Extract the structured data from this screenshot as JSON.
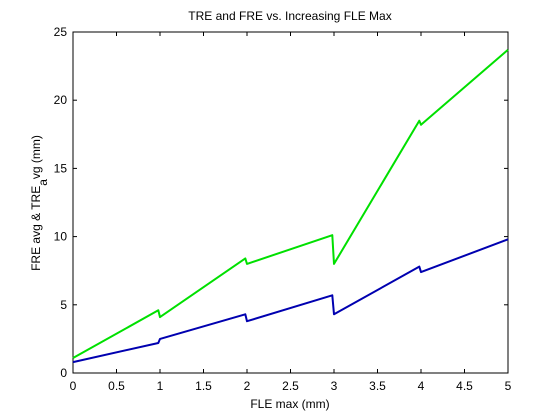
{
  "chart_data": {
    "type": "line",
    "title": "TRE and FRE vs. Increasing FLE Max",
    "xlabel": "FLE max (mm)",
    "ylabel": "FRE avg & TRE",
    "ylabel_subscript": "a",
    "ylabel_tail": "vg (mm)",
    "xlim": [
      0,
      5
    ],
    "ylim": [
      0,
      25
    ],
    "xticks": [
      0,
      0.5,
      1,
      1.5,
      2,
      2.5,
      3,
      3.5,
      4,
      4.5,
      5
    ],
    "xtick_labels": [
      "0",
      "0.5",
      "1",
      "1.5",
      "2",
      "2.5",
      "3",
      "3.5",
      "4",
      "4.5",
      "5"
    ],
    "yticks": [
      0,
      5,
      10,
      15,
      20,
      25
    ],
    "ytick_labels": [
      "0",
      "5",
      "10",
      "15",
      "20",
      "25"
    ],
    "grid": false,
    "series": [
      {
        "color": "#00e000",
        "x": [
          0,
          0.98,
          1.0,
          1.98,
          2.0,
          2.98,
          3.0,
          3.98,
          4.0,
          5.0
        ],
        "y": [
          1.1,
          4.6,
          4.1,
          8.4,
          8.0,
          10.1,
          8.0,
          18.5,
          18.2,
          23.7
        ]
      },
      {
        "color": "#0000b0",
        "x": [
          0,
          0.98,
          1.0,
          1.98,
          2.0,
          2.98,
          3.0,
          3.98,
          4.0,
          5.0
        ],
        "y": [
          0.8,
          2.2,
          2.5,
          4.3,
          3.8,
          5.7,
          4.3,
          7.8,
          7.4,
          9.8
        ]
      }
    ]
  }
}
